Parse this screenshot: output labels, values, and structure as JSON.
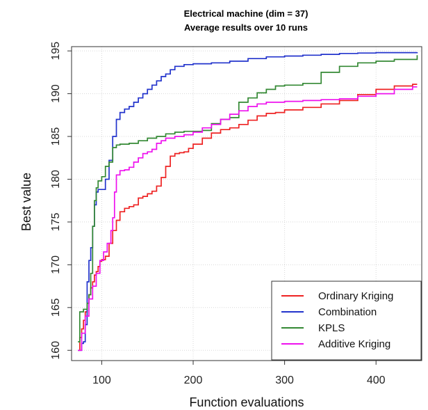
{
  "chart_data": {
    "type": "line",
    "title": "Electrical machine (dim = 37)",
    "subtitle": "Average results over 10 runs",
    "xlabel": "Function evaluations",
    "ylabel": "Best value",
    "xlim": [
      67,
      450
    ],
    "ylim": [
      158.8,
      195.5
    ],
    "xticks": [
      100,
      200,
      300,
      400
    ],
    "yticks": [
      160,
      165,
      170,
      175,
      180,
      185,
      190,
      195
    ],
    "grid": true,
    "legend_position": "bottom-right",
    "series": [
      {
        "name": "Ordinary Kriging",
        "color": "#ee2222",
        "points": [
          [
            74,
            160
          ],
          [
            76,
            161.5
          ],
          [
            78,
            162.5
          ],
          [
            80,
            163.5
          ],
          [
            82,
            164.5
          ],
          [
            84,
            165.5
          ],
          [
            86,
            166.5
          ],
          [
            88,
            167.3
          ],
          [
            90,
            168
          ],
          [
            92,
            168.8
          ],
          [
            94,
            169.2
          ],
          [
            96,
            169.8
          ],
          [
            98,
            170.4
          ],
          [
            100,
            170.6
          ],
          [
            104,
            171
          ],
          [
            108,
            172.5
          ],
          [
            112,
            174
          ],
          [
            116,
            175.2
          ],
          [
            120,
            176.2
          ],
          [
            125,
            176.6
          ],
          [
            130,
            176.8
          ],
          [
            135,
            177
          ],
          [
            140,
            177.8
          ],
          [
            145,
            178
          ],
          [
            150,
            178.3
          ],
          [
            155,
            178.6
          ],
          [
            160,
            179.2
          ],
          [
            165,
            180.2
          ],
          [
            170,
            181.5
          ],
          [
            175,
            182.7
          ],
          [
            180,
            183
          ],
          [
            185,
            183.1
          ],
          [
            190,
            183.2
          ],
          [
            195,
            183.6
          ],
          [
            200,
            184.1
          ],
          [
            210,
            184.8
          ],
          [
            220,
            185.4
          ],
          [
            230,
            185.8
          ],
          [
            240,
            186
          ],
          [
            250,
            186.4
          ],
          [
            260,
            186.9
          ],
          [
            270,
            187.4
          ],
          [
            280,
            187.7
          ],
          [
            290,
            187.8
          ],
          [
            300,
            188.1
          ],
          [
            320,
            188.4
          ],
          [
            340,
            188.8
          ],
          [
            360,
            189.2
          ],
          [
            380,
            189.9
          ],
          [
            400,
            190.5
          ],
          [
            420,
            190.9
          ],
          [
            440,
            191.1
          ],
          [
            445,
            191.1
          ]
        ]
      },
      {
        "name": "Combination",
        "color": "#2233cc",
        "points": [
          [
            74,
            160
          ],
          [
            78,
            160.8
          ],
          [
            80,
            161
          ],
          [
            82,
            163
          ],
          [
            84,
            168
          ],
          [
            86,
            170.5
          ],
          [
            88,
            172
          ],
          [
            90,
            174.5
          ],
          [
            92,
            177
          ],
          [
            94,
            178.5
          ],
          [
            96,
            178.8
          ],
          [
            100,
            178.8
          ],
          [
            104,
            180
          ],
          [
            108,
            182.2
          ],
          [
            112,
            185
          ],
          [
            116,
            187
          ],
          [
            120,
            187.8
          ],
          [
            125,
            188.2
          ],
          [
            130,
            188.5
          ],
          [
            135,
            189
          ],
          [
            140,
            189.5
          ],
          [
            145,
            190
          ],
          [
            150,
            190.5
          ],
          [
            155,
            191
          ],
          [
            160,
            191.5
          ],
          [
            165,
            192
          ],
          [
            170,
            192.3
          ],
          [
            175,
            192.8
          ],
          [
            180,
            193.2
          ],
          [
            190,
            193.4
          ],
          [
            200,
            193.5
          ],
          [
            220,
            193.6
          ],
          [
            240,
            193.8
          ],
          [
            260,
            194.1
          ],
          [
            280,
            194.3
          ],
          [
            300,
            194.4
          ],
          [
            320,
            194.5
          ],
          [
            340,
            194.6
          ],
          [
            360,
            194.7
          ],
          [
            380,
            194.75
          ],
          [
            400,
            194.8
          ],
          [
            420,
            194.8
          ],
          [
            445,
            194.85
          ]
        ]
      },
      {
        "name": "KPLS",
        "color": "#338833",
        "points": [
          [
            74,
            161
          ],
          [
            76,
            164.5
          ],
          [
            80,
            164.8
          ],
          [
            84,
            165.5
          ],
          [
            86,
            166.5
          ],
          [
            88,
            169
          ],
          [
            90,
            174.5
          ],
          [
            92,
            177.5
          ],
          [
            94,
            179
          ],
          [
            96,
            179.8
          ],
          [
            100,
            180.3
          ],
          [
            104,
            181.5
          ],
          [
            108,
            182
          ],
          [
            112,
            183.7
          ],
          [
            116,
            184
          ],
          [
            120,
            184.1
          ],
          [
            130,
            184.2
          ],
          [
            140,
            184.5
          ],
          [
            150,
            184.8
          ],
          [
            160,
            185
          ],
          [
            170,
            185.3
          ],
          [
            180,
            185.5
          ],
          [
            190,
            185.6
          ],
          [
            200,
            185.6
          ],
          [
            210,
            185.7
          ],
          [
            220,
            186.5
          ],
          [
            230,
            187
          ],
          [
            240,
            187.2
          ],
          [
            250,
            189
          ],
          [
            260,
            189.5
          ],
          [
            270,
            190.1
          ],
          [
            280,
            190.5
          ],
          [
            290,
            190.9
          ],
          [
            300,
            191
          ],
          [
            310,
            191
          ],
          [
            320,
            191.2
          ],
          [
            340,
            192.5
          ],
          [
            360,
            193.2
          ],
          [
            380,
            193.6
          ],
          [
            400,
            193.8
          ],
          [
            420,
            194
          ],
          [
            445,
            194.5
          ]
        ]
      },
      {
        "name": "Additive Kriging",
        "color": "#ee11ee",
        "points": [
          [
            74,
            160
          ],
          [
            78,
            162
          ],
          [
            82,
            164
          ],
          [
            86,
            166
          ],
          [
            90,
            167.5
          ],
          [
            94,
            169
          ],
          [
            98,
            170.5
          ],
          [
            102,
            171.5
          ],
          [
            106,
            172.5
          ],
          [
            110,
            174
          ],
          [
            112,
            175.5
          ],
          [
            114,
            178.5
          ],
          [
            116,
            180.5
          ],
          [
            120,
            181
          ],
          [
            125,
            181.1
          ],
          [
            130,
            181.4
          ],
          [
            135,
            182
          ],
          [
            140,
            182.5
          ],
          [
            145,
            183
          ],
          [
            150,
            183.2
          ],
          [
            155,
            183.5
          ],
          [
            160,
            184.2
          ],
          [
            165,
            184.5
          ],
          [
            170,
            184.8
          ],
          [
            180,
            185
          ],
          [
            190,
            185.2
          ],
          [
            200,
            185.5
          ],
          [
            210,
            186
          ],
          [
            220,
            186.4
          ],
          [
            230,
            187
          ],
          [
            240,
            187.6
          ],
          [
            250,
            188
          ],
          [
            260,
            188.5
          ],
          [
            270,
            188.8
          ],
          [
            280,
            189
          ],
          [
            300,
            189.1
          ],
          [
            320,
            189.2
          ],
          [
            340,
            189.3
          ],
          [
            360,
            189.4
          ],
          [
            380,
            189.7
          ],
          [
            400,
            190
          ],
          [
            420,
            190.5
          ],
          [
            440,
            190.8
          ],
          [
            445,
            190.8
          ]
        ]
      }
    ]
  }
}
